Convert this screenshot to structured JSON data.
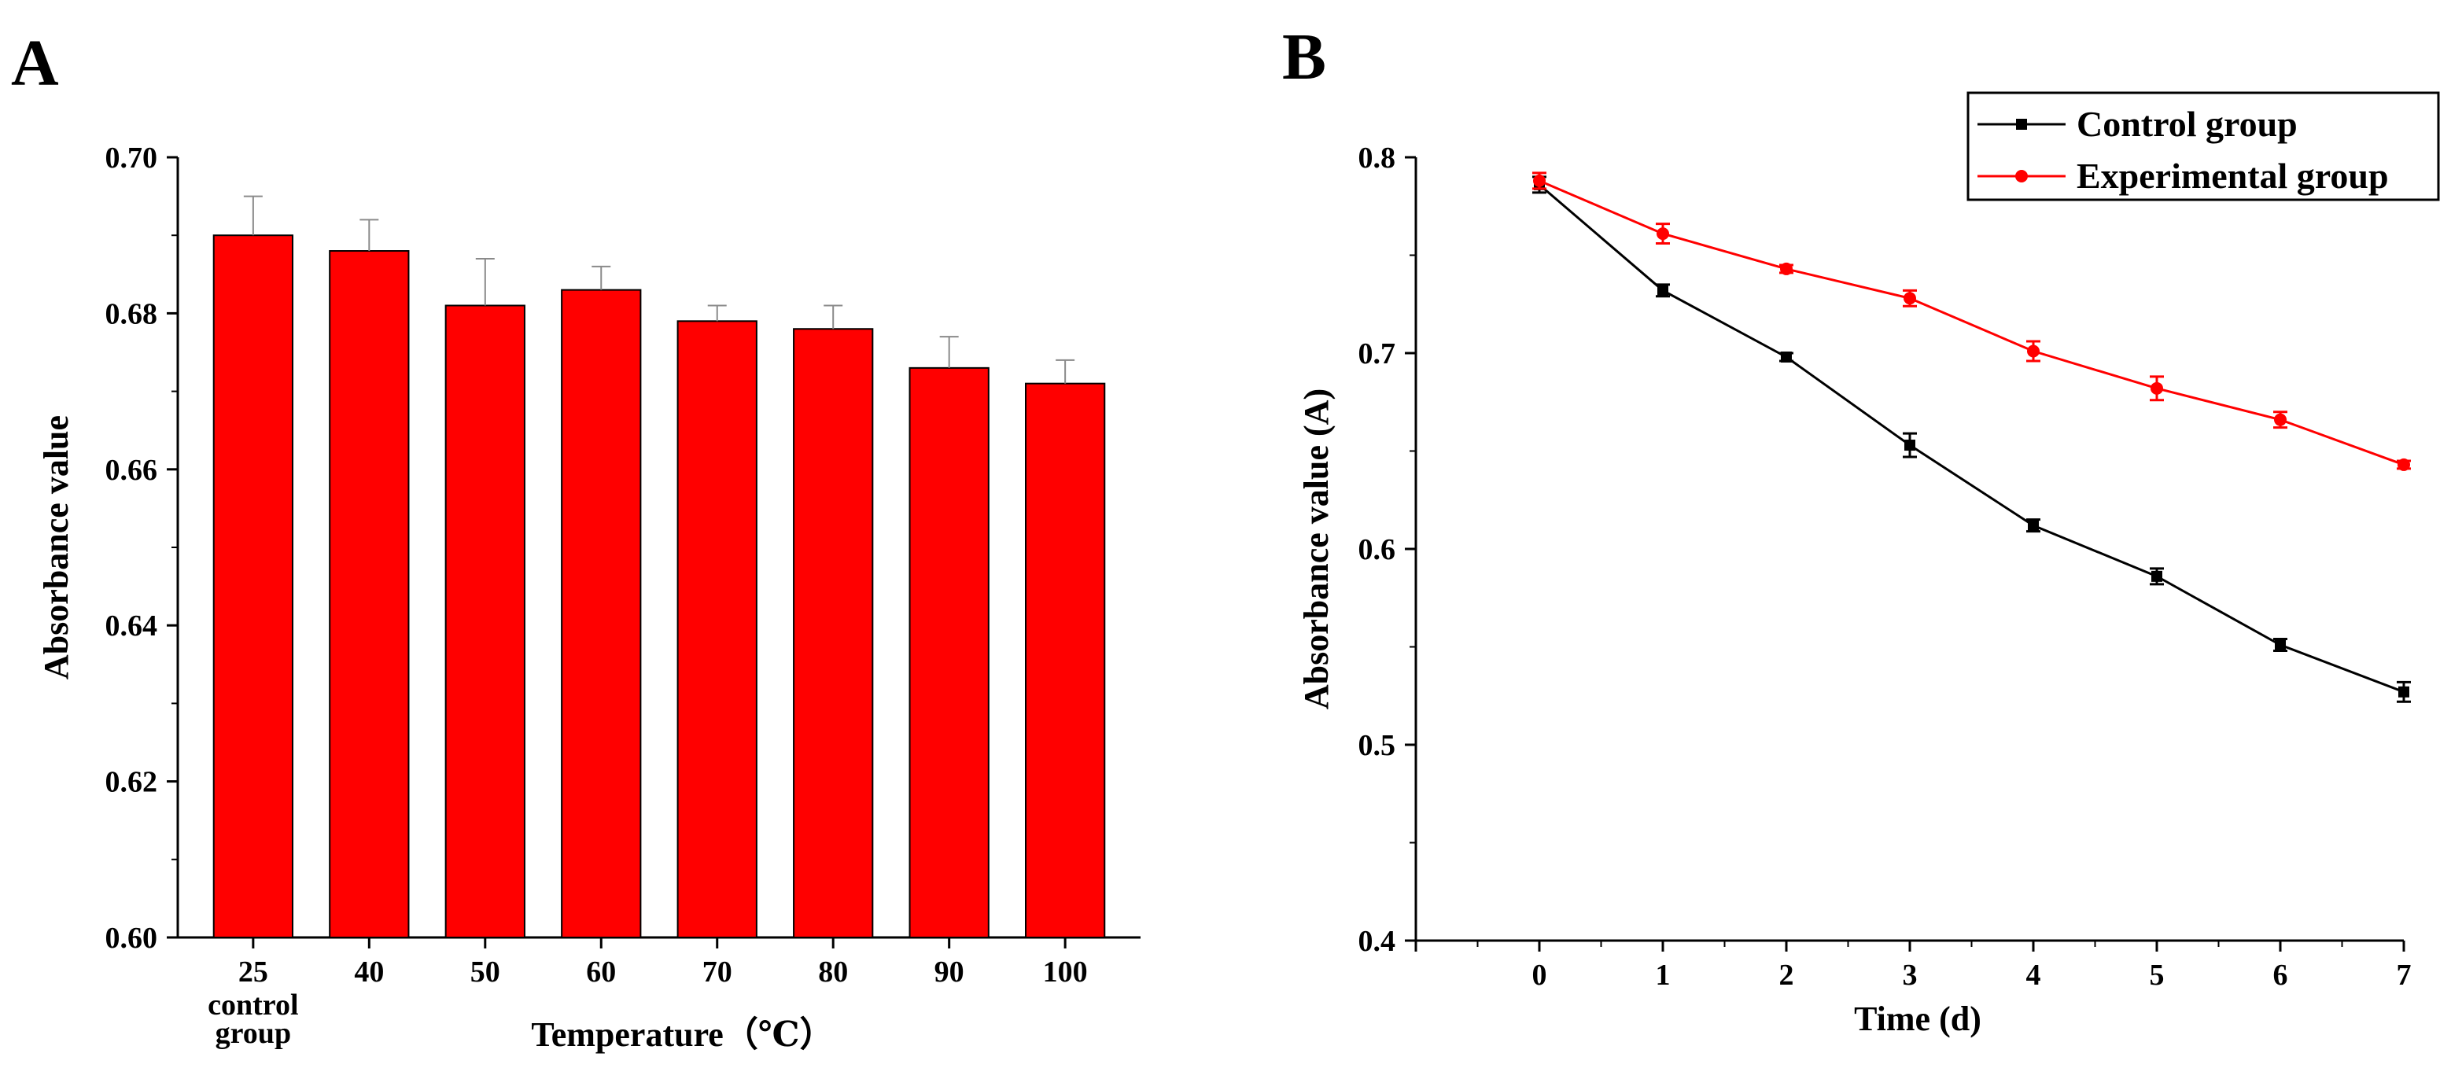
{
  "panels": [
    {
      "letter": "A"
    },
    {
      "letter": "B"
    }
  ],
  "chart_data": [
    {
      "type": "bar",
      "panel": "A",
      "title": "",
      "xlabel": "Temperature（℃）",
      "ylabel": "Absorbance value",
      "ylim": [
        0.6,
        0.7
      ],
      "yticks": [
        "0.60",
        "0.62",
        "0.64",
        "0.66",
        "0.68",
        "0.70"
      ],
      "categories": [
        "25\ncontrol\ngroup",
        "40",
        "50",
        "60",
        "70",
        "80",
        "90",
        "100"
      ],
      "values": [
        0.69,
        0.688,
        0.681,
        0.683,
        0.679,
        0.678,
        0.673,
        0.671
      ],
      "errors": [
        0.005,
        0.004,
        0.006,
        0.003,
        0.002,
        0.003,
        0.004,
        0.003
      ],
      "color": "#ff0000",
      "grid": false,
      "legend": "none"
    },
    {
      "type": "line",
      "panel": "B",
      "title": "",
      "xlabel": "Time (d)",
      "ylabel": "Absorbance value (A)",
      "xlim": [
        -1,
        7
      ],
      "ylim": [
        0.4,
        0.8
      ],
      "xticks": [
        "0",
        "1",
        "2",
        "3",
        "4",
        "5",
        "6",
        "7"
      ],
      "yticks": [
        "0.4",
        "0.5",
        "0.6",
        "0.7",
        "0.8"
      ],
      "x": [
        0,
        1,
        2,
        3,
        4,
        5,
        6,
        7
      ],
      "series": [
        {
          "name": "Control group",
          "color": "#000000",
          "values": [
            0.786,
            0.732,
            0.698,
            0.653,
            0.612,
            0.586,
            0.551,
            0.527
          ],
          "errors": [
            0.004,
            0.003,
            0.002,
            0.006,
            0.003,
            0.004,
            0.003,
            0.005
          ]
        },
        {
          "name": "Experimental group",
          "color": "#ff0000",
          "values": [
            0.788,
            0.761,
            0.743,
            0.728,
            0.701,
            0.682,
            0.666,
            0.643
          ],
          "errors": [
            0.004,
            0.005,
            0.002,
            0.004,
            0.005,
            0.006,
            0.004,
            0.002
          ]
        }
      ],
      "grid": false,
      "legend": "top-right"
    }
  ]
}
